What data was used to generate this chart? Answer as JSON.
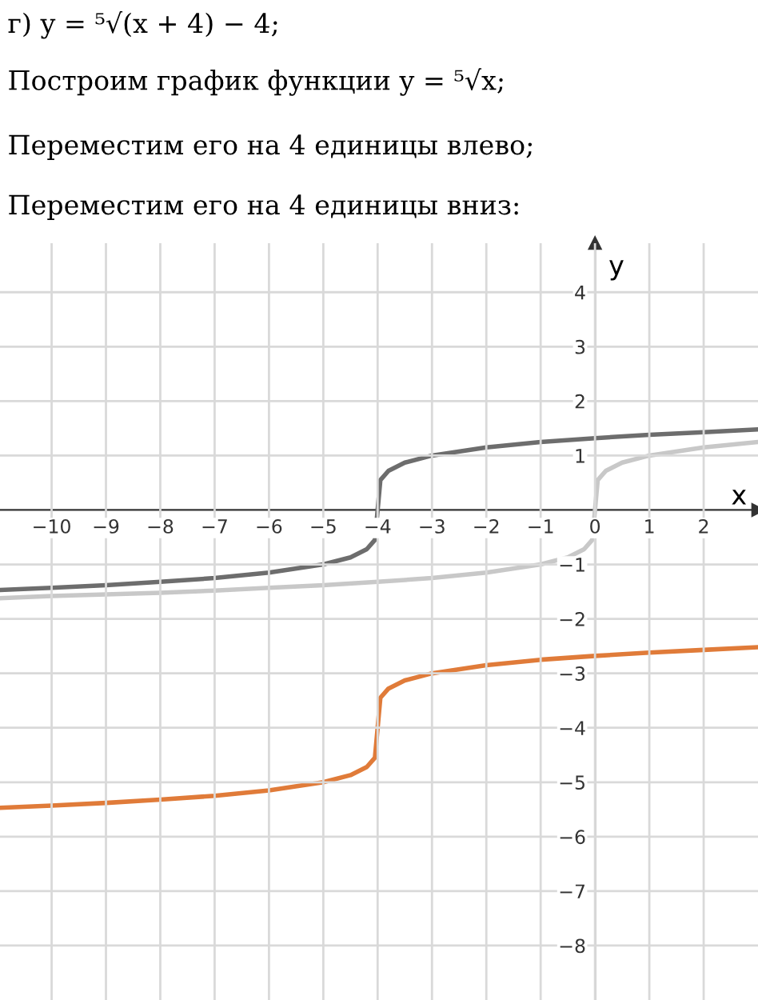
{
  "chart_data": {
    "type": "line",
    "title": "г) y = ⁵√(x + 4) − 4;",
    "subtitle": "Построим график функции y = ⁵√x;",
    "annotations": [
      "Переместим его на 4 единицы влево;",
      "Переместим его на 4 единицы вниз:"
    ],
    "xlabel": "x",
    "ylabel": "y",
    "xlim": [
      -10.95,
      3.0
    ],
    "ylim": [
      -9.0,
      4.9
    ],
    "xticks": [
      -10,
      -9,
      -8,
      -7,
      -6,
      -5,
      -4,
      -3,
      -2,
      -1,
      0,
      1,
      2
    ],
    "yticks": [
      -8,
      -7,
      -6,
      -5,
      -4,
      -3,
      -2,
      -1,
      1,
      2,
      3,
      4
    ],
    "grid": true,
    "series": [
      {
        "color": "#c8c8c8",
        "x": [
          -10.95,
          -10,
          -9,
          -8,
          -7,
          -6,
          -5,
          -4,
          -3,
          -2,
          -1,
          -0.5,
          -0.2,
          -0.05,
          0,
          0.05,
          0.2,
          0.5,
          1,
          2,
          3
        ],
        "values": [
          -1.62,
          -1.58,
          -1.55,
          -1.52,
          -1.48,
          -1.43,
          -1.38,
          -1.32,
          -1.25,
          -1.15,
          -1.0,
          -0.87,
          -0.72,
          -0.55,
          0,
          0.55,
          0.72,
          0.87,
          1.0,
          1.15,
          1.25
        ]
      },
      {
        "color": "#6d6d6d",
        "x": [
          -10.95,
          -10,
          -9,
          -8,
          -7,
          -6,
          -5,
          -4.5,
          -4.2,
          -4.05,
          -4,
          -3.95,
          -3.8,
          -3.5,
          -3,
          -2,
          -1,
          0,
          1,
          2,
          3
        ],
        "values": [
          -1.47,
          -1.43,
          -1.38,
          -1.32,
          -1.25,
          -1.15,
          -1.0,
          -0.87,
          -0.72,
          -0.55,
          0,
          0.55,
          0.72,
          0.87,
          1.0,
          1.15,
          1.25,
          1.32,
          1.38,
          1.43,
          1.48
        ]
      },
      {
        "color": "#e07b39",
        "x": [
          -10.95,
          -10,
          -9,
          -8,
          -7,
          -6,
          -5,
          -4.5,
          -4.2,
          -4.05,
          -4,
          -3.95,
          -3.8,
          -3.5,
          -3,
          -2,
          -1,
          0,
          1,
          2,
          3
        ],
        "values": [
          -5.47,
          -5.43,
          -5.38,
          -5.32,
          -5.25,
          -5.15,
          -5.0,
          -4.87,
          -4.72,
          -4.55,
          -4.0,
          -3.45,
          -3.28,
          -3.13,
          -3.0,
          -2.85,
          -2.75,
          -2.68,
          -2.62,
          -2.57,
          -2.52
        ]
      }
    ]
  }
}
